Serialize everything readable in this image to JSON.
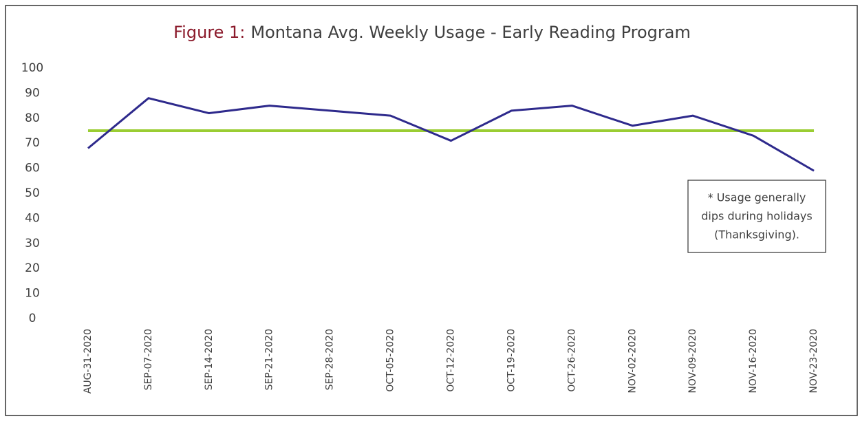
{
  "chart_data": {
    "type": "line",
    "title_prefix": "Figure 1:",
    "title": "Montana Avg. Weekly Usage - Early Reading Program",
    "categories": [
      "AUG-31-2020",
      "SEP-07-2020",
      "SEP-14-2020",
      "SEP-21-2020",
      "SEP-28-2020",
      "OCT-05-2020",
      "OCT-12-2020",
      "OCT-19-2020",
      "OCT-26-2020",
      "NOV-02-2020",
      "NOV-09-2020",
      "NOV-16-2020",
      "NOV-23-2020"
    ],
    "values": [
      68,
      88,
      82,
      85,
      83,
      81,
      71,
      83,
      85,
      77,
      81,
      73,
      59
    ],
    "color": "#2e2a8c",
    "reference_line": {
      "value": 75,
      "color": "#9acd32"
    },
    "ylim": [
      0,
      100
    ],
    "yticks": [
      0,
      10,
      20,
      30,
      40,
      50,
      60,
      70,
      80,
      90,
      100
    ],
    "grid": false,
    "annotation": [
      "* Usage generally",
      "dips during holidays",
      "(Thanksgiving)."
    ]
  }
}
